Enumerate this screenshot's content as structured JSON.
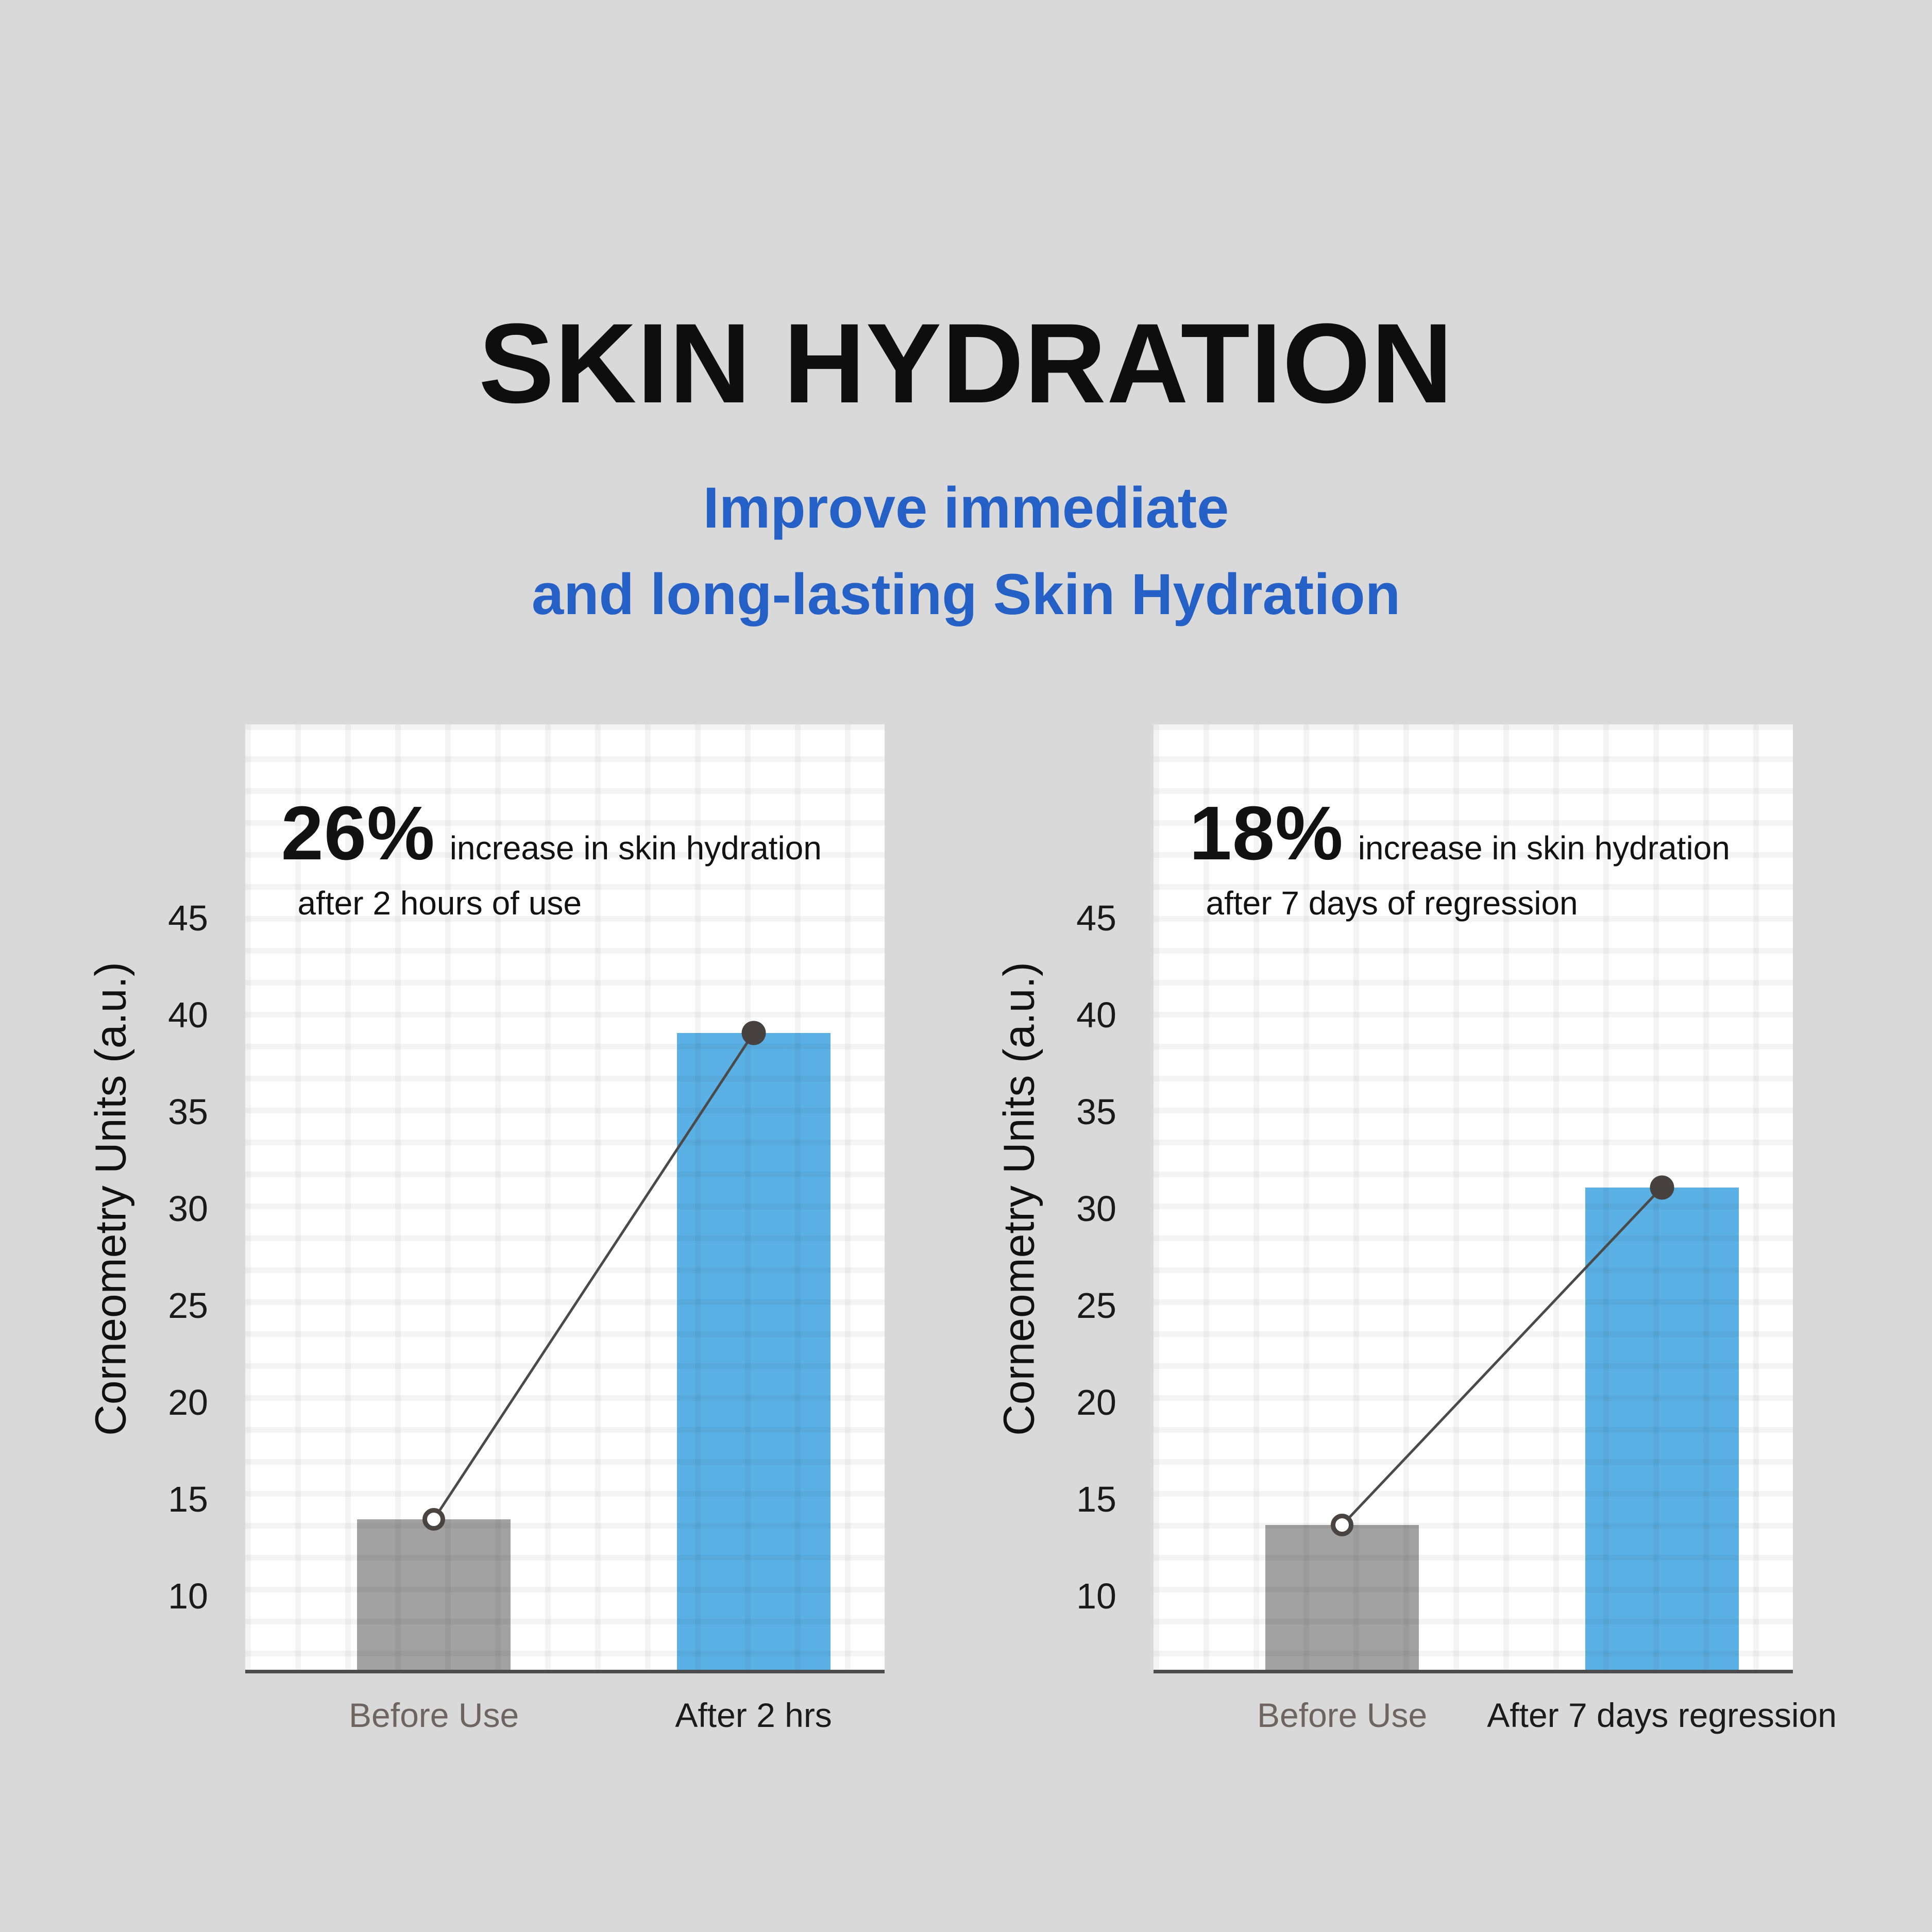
{
  "page": {
    "title": "SKIN HYDRATION",
    "subtitle_line1": "Improve immediate",
    "subtitle_line2": "and long-lasting Skin Hydration"
  },
  "colors": {
    "background": "#d9d9d9",
    "title": "#0e0e0e",
    "subtitle": "#2560c7",
    "axis_line": "#4c4c4c",
    "trend_line": "#4a4a4a",
    "trend_start_marker_stroke": "#4a4440",
    "trend_end_marker_fill": "#474240"
  },
  "chart_data": [
    {
      "type": "bar",
      "stat": "26%",
      "stat_caption": "increase in skin hydration",
      "stat_caption_line2": "after 2 hours of use",
      "ylabel": "Corneometry Units (a.u.)",
      "xlabel": "",
      "categories": [
        "Before Use",
        "After 2 hrs"
      ],
      "values": [
        13.8,
        39
      ],
      "yticks": [
        45,
        40,
        35,
        30,
        25,
        20,
        15,
        10
      ],
      "axis_range": [
        6,
        55
      ],
      "grid": true,
      "legend": "none",
      "bar_colors": [
        "#a2a2a2",
        "#5bb1e5"
      ],
      "category_colors": [
        "#6e6460",
        "#1b1b1b"
      ],
      "trend": {
        "from_value": 13.8,
        "to_value": 39,
        "start_marker": "open-circle",
        "end_marker": "filled-dot"
      }
    },
    {
      "type": "bar",
      "stat": "18%",
      "stat_caption": "increase in skin hydration",
      "stat_caption_line2": "after 7 days of regression",
      "ylabel": "Corneometry Units (a.u.)",
      "xlabel": "",
      "categories": [
        "Before Use",
        "After 7 days regression"
      ],
      "values": [
        13.5,
        31
      ],
      "yticks": [
        45,
        40,
        35,
        30,
        25,
        20,
        15,
        10
      ],
      "axis_range": [
        6,
        55
      ],
      "grid": true,
      "legend": "none",
      "bar_colors": [
        "#a2a2a2",
        "#5bb1e5"
      ],
      "category_colors": [
        "#6e6460",
        "#1b1b1b"
      ],
      "trend": {
        "from_value": 13.5,
        "to_value": 31,
        "start_marker": "open-circle",
        "end_marker": "filled-dot"
      }
    }
  ]
}
